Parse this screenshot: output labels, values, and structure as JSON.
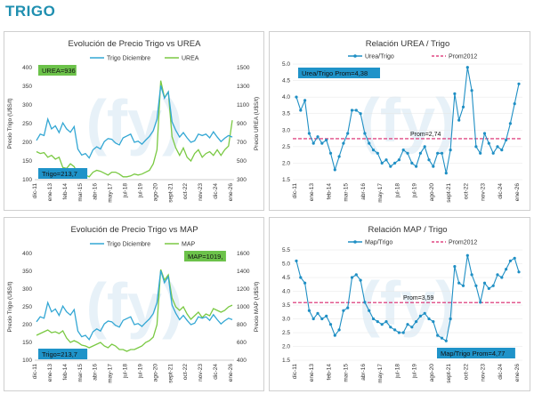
{
  "page": {
    "title": "TRIGO"
  },
  "colors": {
    "trigo": "#33a7d4",
    "fert": "#7ac943",
    "ratio": "#1f8fc4",
    "prom": "#d9236b",
    "badge_blue": "#1f93c9",
    "badge_green": "#6cc24a",
    "grid": "#e6e6e6",
    "watermark": "#d5e7f3"
  },
  "watermark_text": "(fy)",
  "x_ticks": [
    "dic-11",
    "ene-13",
    "feb-14",
    "mar-15",
    "abr-16",
    "may-17",
    "jul-18",
    "jul-19",
    "ago-20",
    "sept-21",
    "oct-22",
    "nov-23",
    "dic-24",
    "ene-26"
  ],
  "chart_data": [
    {
      "id": "trigo_urea",
      "type": "line",
      "title": "Evolución de Precio Trigo vs UREA",
      "ylabel_left": "Precio Trigo (U$S/t)",
      "ylabel_right": "Precio UREA (U$S/t)",
      "ylim_left": [
        100,
        400
      ],
      "ylim_right": [
        300,
        1500
      ],
      "yticks_left": [
        "100",
        "150",
        "200",
        "250",
        "300",
        "350",
        "400"
      ],
      "yticks_right": [
        "300",
        "500",
        "700",
        "900",
        "1100",
        "1300",
        "1500"
      ],
      "legend_position": "top-center",
      "series": [
        {
          "name": "Trigo Diciembre",
          "axis": "left",
          "color_key": "trigo",
          "values": [
            205,
            222,
            218,
            262,
            236,
            244,
            226,
            252,
            236,
            227,
            242,
            182,
            166,
            170,
            158,
            180,
            188,
            182,
            202,
            210,
            208,
            198,
            193,
            212,
            217,
            222,
            200,
            203,
            195,
            206,
            216,
            231,
            262,
            352,
            318,
            335,
            255,
            232,
            214,
            226,
            212,
            200,
            204,
            222,
            218,
            222,
            212,
            228,
            214,
            202,
            211,
            218,
            214
          ]
        },
        {
          "name": "UREA",
          "axis": "right",
          "color_key": "fert",
          "values": [
            600,
            580,
            590,
            540,
            560,
            520,
            540,
            430,
            420,
            470,
            440,
            360,
            330,
            350,
            330,
            380,
            400,
            390,
            370,
            350,
            380,
            380,
            360,
            330,
            330,
            340,
            360,
            350,
            360,
            380,
            400,
            470,
            620,
            1360,
            1180,
            1240,
            760,
            640,
            560,
            640,
            540,
            500,
            580,
            620,
            540,
            580,
            600,
            560,
            620,
            560,
            620,
            660,
            936
          ]
        }
      ],
      "badges": [
        {
          "text": "UREA=936",
          "color_key": "badge_green",
          "pos": "top-left"
        },
        {
          "text": "Trigo=213,7",
          "color_key": "badge_blue",
          "pos": "bottom-left"
        }
      ]
    },
    {
      "id": "rel_urea",
      "type": "line",
      "title": "Relación UREA / Trigo",
      "ylim": [
        1.5,
        5.0
      ],
      "yticks": [
        "1.5",
        "2.0",
        "2.5",
        "3.0",
        "3.5",
        "4.0",
        "4.5",
        "5.0"
      ],
      "legend_position": "top-center",
      "series": [
        {
          "name": "Urea/Trigo",
          "color_key": "ratio",
          "values": [
            4.0,
            3.6,
            3.9,
            2.9,
            2.6,
            2.8,
            2.6,
            2.7,
            2.3,
            1.8,
            2.2,
            2.6,
            2.9,
            3.6,
            3.6,
            3.5,
            2.9,
            2.6,
            2.4,
            2.3,
            2.0,
            2.1,
            1.9,
            2.0,
            2.1,
            2.4,
            2.3,
            2.0,
            1.9,
            2.3,
            2.5,
            2.1,
            1.9,
            2.3,
            2.3,
            1.7,
            2.4,
            4.1,
            3.3,
            3.7,
            4.9,
            4.2,
            2.5,
            2.3,
            2.9,
            2.6,
            2.3,
            2.5,
            2.4,
            2.7,
            3.2,
            3.8,
            4.4
          ]
        },
        {
          "name": "Prom2012",
          "color_key": "prom",
          "dashed": true,
          "values": [
            2.74
          ]
        }
      ],
      "badges": [
        {
          "text": "Urea/Trigo Prom=4,38",
          "color_key": "badge_blue",
          "pos": "top-left"
        }
      ],
      "annotations": [
        {
          "text": "Prom=2,74"
        }
      ]
    },
    {
      "id": "trigo_map",
      "type": "line",
      "title": "Evolución de Precio Trigo vs MAP",
      "ylabel_left": "Precio Trigo (U$S/t)",
      "ylabel_right": "Precio MAP (U$S/t)",
      "ylim_left": [
        100,
        400
      ],
      "ylim_right": [
        400,
        1600
      ],
      "yticks_left": [
        "100",
        "150",
        "200",
        "250",
        "300",
        "350",
        "400"
      ],
      "yticks_right": [
        "400",
        "600",
        "800",
        "1000",
        "1200",
        "1400",
        "1600"
      ],
      "legend_position": "top-center",
      "series": [
        {
          "name": "Trigo Diciembre",
          "axis": "left",
          "color_key": "trigo",
          "values": [
            208,
            222,
            218,
            262,
            236,
            244,
            226,
            252,
            236,
            227,
            242,
            182,
            166,
            170,
            158,
            180,
            188,
            182,
            202,
            210,
            208,
            198,
            193,
            212,
            217,
            222,
            200,
            203,
            195,
            206,
            216,
            231,
            262,
            352,
            318,
            335,
            255,
            232,
            214,
            226,
            212,
            200,
            204,
            222,
            218,
            222,
            212,
            228,
            214,
            202,
            211,
            218,
            214
          ]
        },
        {
          "name": "MAP",
          "axis": "right",
          "color_key": "fert",
          "values": [
            680,
            700,
            720,
            740,
            710,
            720,
            700,
            730,
            650,
            600,
            620,
            600,
            570,
            560,
            540,
            560,
            580,
            600,
            560,
            540,
            580,
            560,
            520,
            520,
            500,
            520,
            520,
            540,
            560,
            600,
            620,
            660,
            800,
            1420,
            1300,
            1360,
            1100,
            1000,
            960,
            1000,
            920,
            860,
            900,
            940,
            880,
            920,
            900,
            980,
            960,
            940,
            960,
            1000,
            1019
          ]
        }
      ],
      "badges": [
        {
          "text": "MAP=1019,",
          "color_key": "badge_green",
          "pos": "top-right"
        },
        {
          "text": "Trigo=213,7",
          "color_key": "badge_blue",
          "pos": "bottom-left"
        }
      ]
    },
    {
      "id": "rel_map",
      "type": "line",
      "title": "Relación MAP / Trigo",
      "ylim": [
        1.5,
        5.5
      ],
      "yticks": [
        "1.5",
        "2.0",
        "2.5",
        "3.0",
        "3.5",
        "4.0",
        "4.5",
        "5.0",
        "5.5"
      ],
      "legend_position": "top-center",
      "series": [
        {
          "name": "Map/Trigo",
          "color_key": "ratio",
          "values": [
            5.1,
            4.5,
            4.3,
            3.3,
            3.0,
            3.2,
            3.0,
            3.1,
            2.8,
            2.4,
            2.6,
            3.3,
            3.4,
            4.5,
            4.6,
            4.4,
            3.6,
            3.3,
            3.0,
            2.9,
            2.8,
            2.9,
            2.7,
            2.6,
            2.5,
            2.5,
            2.8,
            2.7,
            2.9,
            3.1,
            3.2,
            3.0,
            2.9,
            2.4,
            2.3,
            2.2,
            3.0,
            4.9,
            4.3,
            4.2,
            5.3,
            4.6,
            4.2,
            3.6,
            4.3,
            4.1,
            4.2,
            4.6,
            4.5,
            4.8,
            5.1,
            5.2,
            4.7
          ]
        },
        {
          "name": "Prom2012",
          "color_key": "prom",
          "dashed": true,
          "values": [
            3.59
          ]
        }
      ],
      "badges": [
        {
          "text": "Map/Trigo Prom=4,77",
          "color_key": "badge_blue",
          "pos": "bottom-right"
        }
      ],
      "annotations": [
        {
          "text": "Prom=3,59"
        }
      ]
    }
  ]
}
